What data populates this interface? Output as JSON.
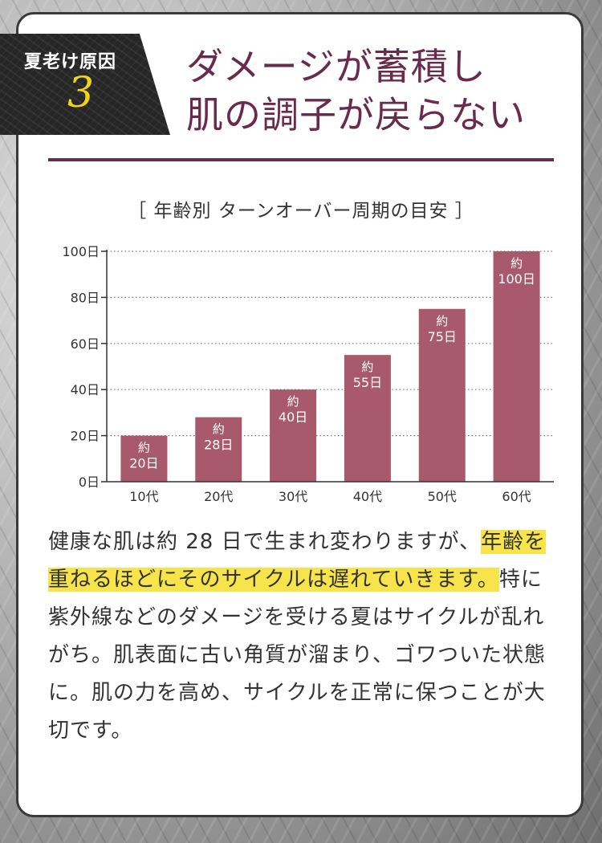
{
  "badge": {
    "label": "夏老け原因",
    "number": "3"
  },
  "title": {
    "line1": "ダメージが蓄積し",
    "line2": "肌の調子が戻らない"
  },
  "chart_title": "［ 年齢別 ターンオーバー周期の目安 ］",
  "chart_data": {
    "type": "bar",
    "categories": [
      "10代",
      "20代",
      "30代",
      "40代",
      "50代",
      "60代"
    ],
    "values": [
      20,
      28,
      40,
      55,
      75,
      100
    ],
    "bar_labels": [
      {
        "line1": "約",
        "line2": "20日"
      },
      {
        "line1": "約",
        "line2": "28日"
      },
      {
        "line1": "約",
        "line2": "40日"
      },
      {
        "line1": "約",
        "line2": "55日"
      },
      {
        "line1": "約",
        "line2": "75日"
      },
      {
        "line1": "約",
        "line2": "100日"
      }
    ],
    "yticks": [
      0,
      20,
      40,
      60,
      80,
      100
    ],
    "ytick_labels": [
      "0日",
      "20日",
      "40日",
      "60日",
      "80日",
      "100日"
    ],
    "ylim": [
      0,
      100
    ],
    "grid": true,
    "bar_color": "#a85a6c"
  },
  "body": {
    "part1": "健康な肌は約 28 日で生まれ変わりますが、",
    "highlight": "年齢を重ねるほどにそのサイクルは遅れていきます。",
    "part2": "特に紫外線などのダメージを受ける夏はサイクルが乱れがち。肌表面に古い角質が溜まり、ゴワついた状態に。肌の力を高め、サイクルを正常に保つことが大切です。"
  },
  "colors": {
    "accent": "#6a2a4c",
    "highlight": "#f7e44a",
    "badge_number": "#f2d21a"
  }
}
